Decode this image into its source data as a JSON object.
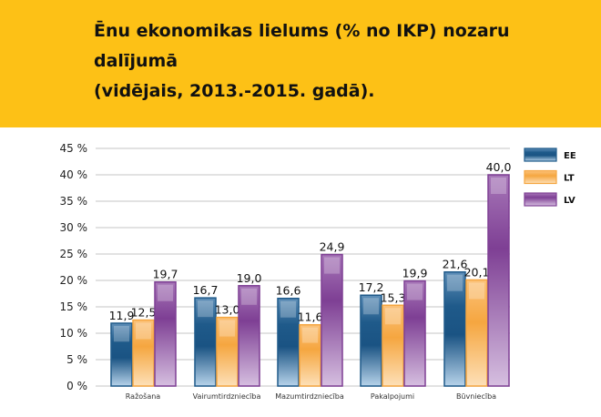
{
  "title": {
    "line1": "Ēnu ekonomikas lielums (% no IKP) nozaru dalījumā",
    "line2": "(vidējais, 2013.-2015. gadā)."
  },
  "colors": {
    "banner": "#FDC116",
    "EE": "#1F5A8A",
    "LT": "#F5A640",
    "LV": "#7E3F94"
  },
  "chart_data": {
    "type": "bar",
    "title": "Ēnu ekonomikas lielums (% no IKP) nozaru dalījumā (vidējais, 2013.-2015. gadā).",
    "categories": [
      "Ražošana",
      "Vairumtirdzniecība",
      "Mazumtirdzniecība",
      "Pakalpojumi",
      "Būvniecība"
    ],
    "series": [
      {
        "name": "EE",
        "values": [
          11.9,
          16.7,
          16.6,
          17.2,
          21.6
        ],
        "labels": [
          "11,9",
          "16,7",
          "16,6",
          "17,2",
          "21,6"
        ]
      },
      {
        "name": "LT",
        "values": [
          12.5,
          13.0,
          11.6,
          15.3,
          20.1
        ],
        "labels": [
          "12,5",
          "13,0",
          "11,6",
          "15,3",
          "20,1"
        ]
      },
      {
        "name": "LV",
        "values": [
          19.7,
          19.0,
          24.9,
          19.9,
          40.0
        ],
        "labels": [
          "19,7",
          "19,0",
          "24,9",
          "19,9",
          "40,0"
        ]
      }
    ],
    "yticks": [
      "0 %",
      "5 %",
      "10 %",
      "15 %",
      "20 %",
      "25 %",
      "30 %",
      "35 %",
      "40 %",
      "45 %"
    ],
    "ylim": [
      0,
      45
    ],
    "xlabel": "",
    "ylabel": "",
    "grid": true,
    "legend": "top-right"
  }
}
